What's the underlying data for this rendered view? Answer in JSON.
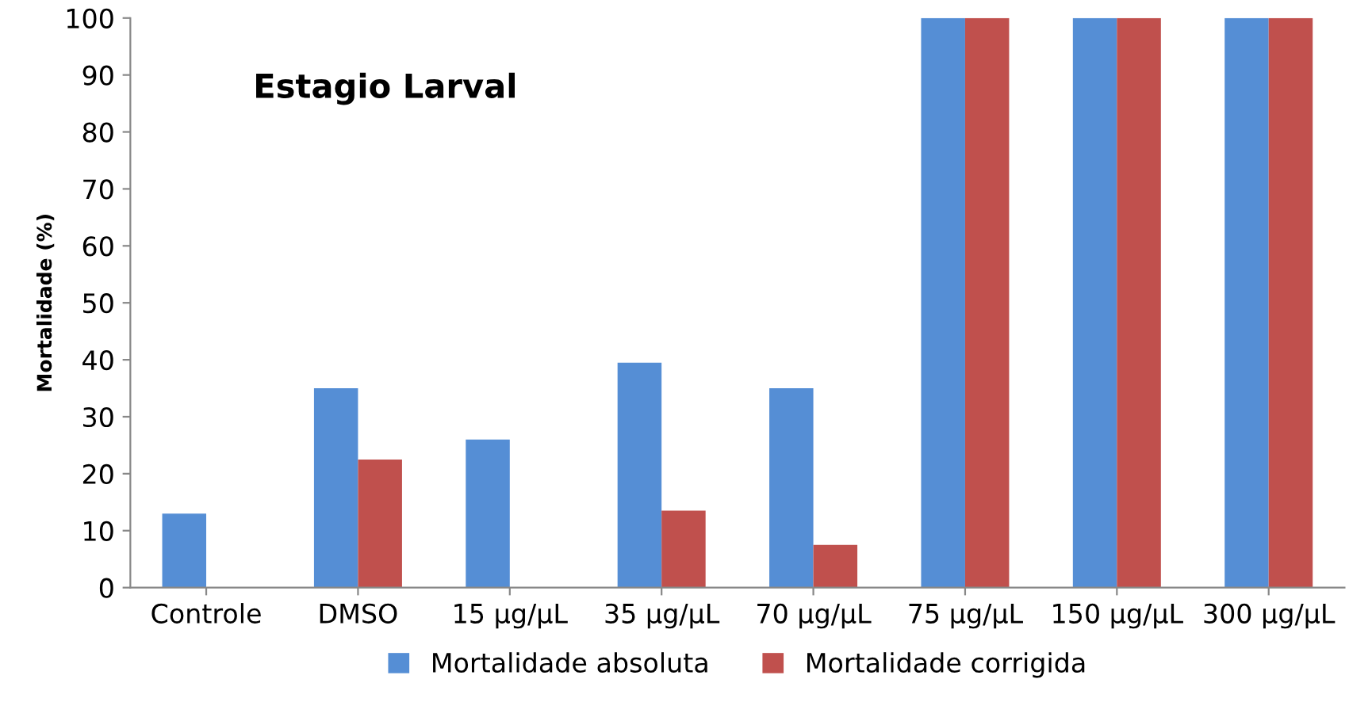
{
  "chart_data": {
    "type": "bar",
    "title": "Estagio Larval",
    "ylabel": "Mortalidade (%)",
    "categories": [
      "Controle",
      "DMSO",
      "15 µg/µL",
      "35 µg/µL",
      "70 µg/µL",
      "75 µg/µL",
      "150 µg/µL",
      "300 µg/µL"
    ],
    "series": [
      {
        "name": "Mortalidade absoluta",
        "color": "#558ed5",
        "values": [
          13,
          35,
          26,
          39.5,
          35,
          100,
          100,
          100
        ]
      },
      {
        "name": "Mortalidade corrigida",
        "color": "#c0504d",
        "values": [
          0,
          22.5,
          0,
          13.5,
          7.5,
          100,
          100,
          100
        ]
      }
    ],
    "ylim": [
      0,
      100
    ],
    "yticks": [
      0,
      10,
      20,
      30,
      40,
      50,
      60,
      70,
      80,
      90,
      100
    ],
    "grid": false,
    "legend": "bottom"
  }
}
